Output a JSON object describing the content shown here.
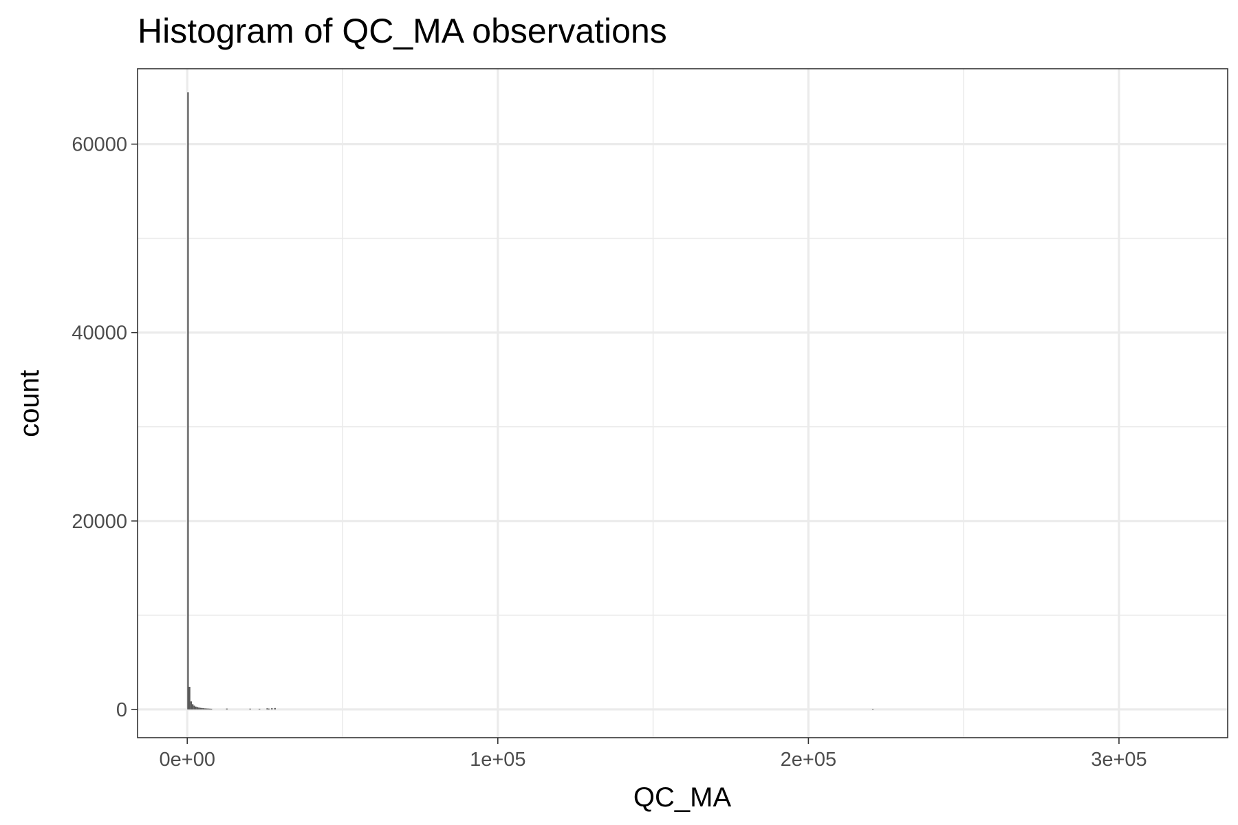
{
  "chart_data": {
    "type": "bar",
    "title": "Histogram of QC_MA observations",
    "xlabel": "QC_MA",
    "ylabel": "count",
    "xlim": [
      -16000,
      335000
    ],
    "ylim": [
      -3000,
      68000
    ],
    "x_ticks": [
      {
        "value": 0,
        "label": "0e+00"
      },
      {
        "value": 100000,
        "label": "1e+05"
      },
      {
        "value": 200000,
        "label": "2e+05"
      },
      {
        "value": 300000,
        "label": "3e+05"
      }
    ],
    "x_minor_ticks": [
      50000,
      150000,
      250000
    ],
    "y_ticks": [
      {
        "value": 0,
        "label": "0"
      },
      {
        "value": 20000,
        "label": "20000"
      },
      {
        "value": 40000,
        "label": "40000"
      },
      {
        "value": 60000,
        "label": "60000"
      }
    ],
    "y_minor_ticks": [
      10000,
      30000,
      50000
    ],
    "grid": true,
    "bar_color": "#595959",
    "bin_width": 500,
    "bins": [
      {
        "x": 0,
        "count": 65500
      },
      {
        "x": 500,
        "count": 2400
      },
      {
        "x": 1000,
        "count": 850
      },
      {
        "x": 1500,
        "count": 550
      },
      {
        "x": 2000,
        "count": 400
      },
      {
        "x": 2500,
        "count": 300
      },
      {
        "x": 3000,
        "count": 250
      },
      {
        "x": 3500,
        "count": 200
      },
      {
        "x": 4000,
        "count": 170
      },
      {
        "x": 4500,
        "count": 150
      },
      {
        "x": 5000,
        "count": 130
      },
      {
        "x": 5500,
        "count": 110
      },
      {
        "x": 6000,
        "count": 100
      },
      {
        "x": 6500,
        "count": 90
      },
      {
        "x": 7000,
        "count": 80
      },
      {
        "x": 7500,
        "count": 70
      },
      {
        "x": 12500,
        "count": 90
      },
      {
        "x": 20000,
        "count": 80
      },
      {
        "x": 23000,
        "count": 70
      },
      {
        "x": 25500,
        "count": 120
      },
      {
        "x": 26000,
        "count": 90
      },
      {
        "x": 27000,
        "count": 130
      },
      {
        "x": 28000,
        "count": 150
      },
      {
        "x": 220500,
        "count": 60
      }
    ]
  }
}
